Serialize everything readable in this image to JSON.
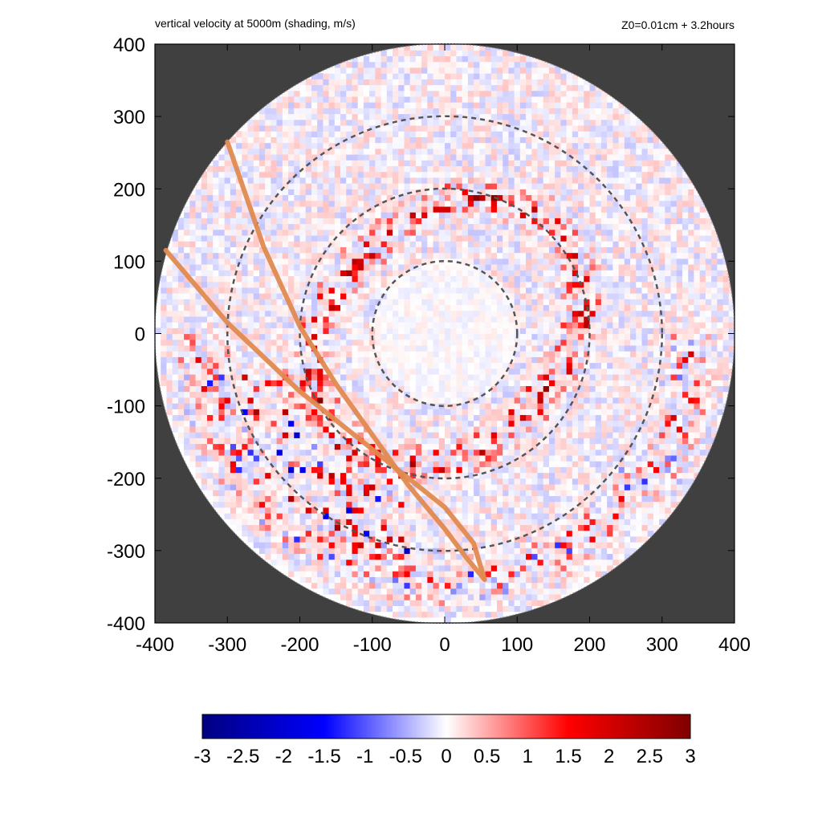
{
  "chart_data": {
    "type": "heatmap",
    "title": "vertical velocity at 5000m (shading, m/s)",
    "subtitle": "Z0=0.01cm  + 3.2hours",
    "xlabel": "",
    "ylabel": "",
    "xlim": [
      -400,
      400
    ],
    "ylim": [
      -400,
      400
    ],
    "x_ticks": [
      -400,
      -300,
      -200,
      -100,
      0,
      100,
      200,
      300,
      400
    ],
    "y_ticks": [
      400,
      300,
      200,
      100,
      0,
      -100,
      -200,
      -300,
      -400
    ],
    "domain_radius": 400,
    "reference_circles_radii": [
      100,
      200,
      300
    ],
    "colorbar": {
      "min": -3,
      "max": 3,
      "ticks": [
        -3,
        -2.5,
        -2,
        -1.5,
        -1,
        -0.5,
        0,
        0.5,
        1,
        1.5,
        2,
        2.5,
        3
      ],
      "tick_labels": [
        "-3",
        "-2.5",
        "-2",
        "-1.5",
        "-1",
        "-0.5",
        "0",
        "0.5",
        "1",
        "1.5",
        "2",
        "2.5",
        "3"
      ],
      "colors": [
        "#000080",
        "#0000ff",
        "#ffffff",
        "#ff0000",
        "#800000"
      ]
    },
    "tracks": [
      {
        "points": [
          [
            -300,
            265
          ],
          [
            -250,
            120
          ],
          [
            -200,
            10
          ],
          [
            -150,
            -70
          ],
          [
            -100,
            -140
          ],
          [
            -50,
            -210
          ],
          [
            0,
            -270
          ],
          [
            30,
            -310
          ],
          [
            55,
            -340
          ]
        ]
      },
      {
        "points": [
          [
            -385,
            115
          ],
          [
            -300,
            15
          ],
          [
            -200,
            -80
          ],
          [
            -100,
            -160
          ],
          [
            0,
            -240
          ],
          [
            40,
            -290
          ],
          [
            55,
            -340
          ]
        ]
      }
    ],
    "features": [
      {
        "type": "ring",
        "radius": 180,
        "amplitude": 2.6
      },
      {
        "type": "ring",
        "radius": 340,
        "amplitude": 2.2
      },
      {
        "type": "spiral_band",
        "amplitude": 2.4
      }
    ],
    "colors": {
      "outside_domain": "#404040",
      "track": "#e08a50",
      "ref_circle": "#555555"
    }
  }
}
